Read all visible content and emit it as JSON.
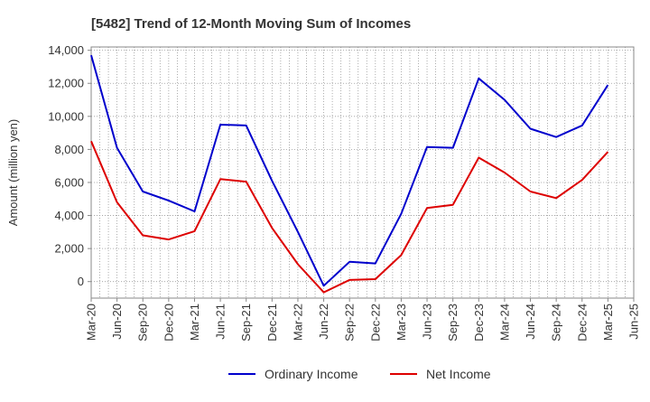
{
  "chart_data": {
    "type": "line",
    "title": "[5482]  Trend of 12-Month Moving Sum of Incomes",
    "xlabel": "",
    "ylabel": "Amount (million yen)",
    "ylim": [
      -1000,
      14200
    ],
    "yticks": [
      0,
      2000,
      4000,
      6000,
      8000,
      10000,
      12000,
      14000
    ],
    "ytick_labels": [
      "0",
      "2,000",
      "4,000",
      "6,000",
      "8,000",
      "10,000",
      "12,000",
      "14,000"
    ],
    "grid": true,
    "legend_position": "bottom-center",
    "x_tick_labels": [
      "Mar-20",
      "Jun-20",
      "Sep-20",
      "Dec-20",
      "Mar-21",
      "Jun-21",
      "Sep-21",
      "Dec-21",
      "Mar-22",
      "Jun-22",
      "Sep-22",
      "Dec-22",
      "Mar-23",
      "Jun-23",
      "Sep-23",
      "Dec-23",
      "Mar-24",
      "Jun-24",
      "Sep-24",
      "Dec-24",
      "Mar-25",
      "Jun-25"
    ],
    "series": [
      {
        "name": "Ordinary Income",
        "color": "#0000cc",
        "values": [
          13700,
          8100,
          5450,
          4900,
          4250,
          9500,
          9450,
          6100,
          3000,
          -250,
          1200,
          1100,
          4100,
          8150,
          8100,
          12300,
          11000,
          9250,
          8750,
          9450,
          11900
        ]
      },
      {
        "name": "Net Income",
        "color": "#dd0000",
        "values": [
          8500,
          4800,
          2800,
          2550,
          3050,
          6200,
          6050,
          3250,
          1050,
          -650,
          100,
          150,
          1600,
          4450,
          4650,
          7500,
          6600,
          5450,
          5050,
          6150,
          7850
        ]
      }
    ]
  }
}
